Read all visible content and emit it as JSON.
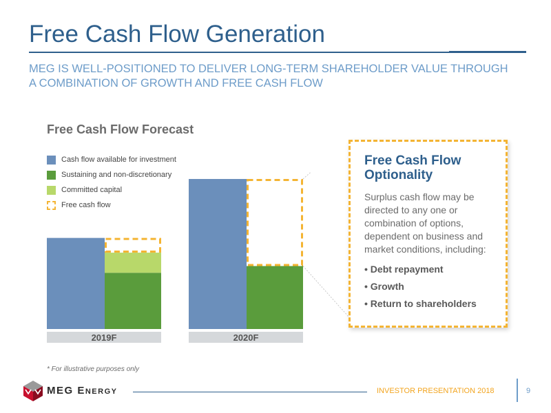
{
  "slide": {
    "title": "Free Cash Flow Generation",
    "subtitle": "MEG IS WELL-POSITIONED TO DELIVER LONG-TERM SHAREHOLDER VALUE THROUGH A COMBINATION OF GROWTH AND FREE CASH FLOW",
    "footnote": "* For illustrative purposes only",
    "footer_label": "INVESTOR PRESENTATION 2018",
    "page_number": "9",
    "company": "MEG Energy"
  },
  "colors": {
    "title": "#2e5f8c",
    "subtitle": "#6d9cc9",
    "cash_flow_available": "#6b8fbb",
    "sustaining": "#5a9c3c",
    "committed": "#b8d86a",
    "free_cash_flow": "#f4b433",
    "axis_band": "#d5d8db",
    "footer_label": "#f2a41e"
  },
  "chart_data": {
    "type": "bar",
    "title": "Free Cash Flow Forecast",
    "categories": [
      "2019F",
      "2020F"
    ],
    "legend": [
      {
        "name": "Cash flow available for investment",
        "color": "#6b8fbb",
        "style": "solid"
      },
      {
        "name": "Sustaining and non-discretionary",
        "color": "#5a9c3c",
        "style": "solid"
      },
      {
        "name": "Committed capital",
        "color": "#b8d86a",
        "style": "solid"
      },
      {
        "name": "Free cash flow",
        "color": "#f4b433",
        "style": "dashed"
      }
    ],
    "series": [
      {
        "name": "Cash flow available for investment",
        "values": [
          68,
          112
        ]
      },
      {
        "name": "Sustaining and non-discretionary",
        "values": [
          42,
          47
        ]
      },
      {
        "name": "Committed capital",
        "values": [
          15,
          0
        ]
      },
      {
        "name": "Free cash flow",
        "values": [
          11,
          65
        ]
      }
    ],
    "ylim": [
      0,
      112
    ],
    "grid": false,
    "legend_position": "top-left",
    "note": "* For illustrative purposes only"
  },
  "callout": {
    "title": "Free Cash Flow Optionality",
    "text": "Surplus cash flow may be directed to any one or combination of options, dependent on business and market conditions, including:",
    "items": [
      "• Debt repayment",
      "• Growth",
      "• Return to shareholders"
    ]
  }
}
